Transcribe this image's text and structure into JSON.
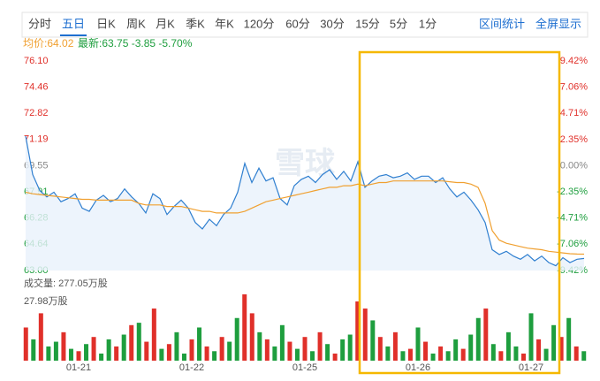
{
  "tabs": {
    "items": [
      "分时",
      "五日",
      "日K",
      "周K",
      "月K",
      "季K",
      "年K",
      "120分",
      "60分",
      "30分",
      "15分",
      "5分",
      "1分"
    ],
    "selected": 1,
    "actions": [
      "区间统计",
      "全屏显示"
    ]
  },
  "legend": {
    "avg": "均价:64.02",
    "latest": "最新:63.75 -3.85 -5.70%"
  },
  "watermark": "雪球",
  "chart_data": {
    "type": "line",
    "x_labels": [
      "01-21",
      "01-22",
      "01-25",
      "01-26",
      "01-27"
    ],
    "series": [
      {
        "color": "#2f7fd0",
        "values": [
          71.4,
          69.0,
          68.0,
          67.6,
          67.9,
          67.3,
          67.5,
          67.8,
          66.9,
          66.7,
          67.4,
          67.7,
          67.3,
          67.5,
          68.1,
          67.6,
          67.2,
          66.6,
          67.8,
          67.5,
          66.5,
          67.0,
          67.4,
          66.9,
          66.0,
          65.6,
          66.2,
          65.8,
          66.5,
          66.9,
          67.9,
          69.7,
          68.5,
          69.4,
          68.6,
          68.8,
          67.5,
          67.1,
          68.3,
          68.7,
          68.9,
          68.5,
          69.0,
          69.3,
          68.7,
          69.2,
          68.6,
          69.8,
          68.2,
          68.6,
          68.9,
          69.0,
          68.8,
          68.9,
          69.1,
          68.7,
          68.9,
          68.9,
          68.5,
          68.8,
          68.1,
          67.6,
          67.9,
          67.4,
          66.8,
          66.0,
          64.3,
          64.0,
          64.2,
          63.9,
          63.7,
          64.0,
          63.6,
          63.9,
          63.5,
          63.3,
          63.8,
          63.5,
          63.7,
          63.75
        ]
      },
      {
        "color": "#f0a030",
        "values": [
          67.9,
          67.8,
          67.75,
          67.7,
          67.65,
          67.6,
          67.55,
          67.5,
          67.45,
          67.45,
          67.4,
          67.4,
          67.4,
          67.4,
          67.4,
          67.4,
          67.2,
          67.1,
          67.1,
          67.1,
          67.0,
          67.0,
          67.0,
          66.9,
          66.8,
          66.7,
          66.7,
          66.6,
          66.6,
          66.6,
          66.6,
          66.7,
          66.9,
          67.1,
          67.3,
          67.4,
          67.5,
          67.6,
          67.7,
          67.8,
          67.9,
          68.0,
          68.1,
          68.2,
          68.2,
          68.3,
          68.3,
          68.4,
          68.3,
          68.4,
          68.5,
          68.5,
          68.6,
          68.6,
          68.6,
          68.6,
          68.6,
          68.6,
          68.6,
          68.6,
          68.55,
          68.5,
          68.5,
          68.4,
          68.2,
          67.2,
          65.5,
          64.9,
          64.7,
          64.6,
          64.5,
          64.4,
          64.35,
          64.3,
          64.2,
          64.15,
          64.1,
          64.05,
          64.03,
          64.02
        ]
      }
    ],
    "ylim": [
      63.0,
      76.1
    ],
    "yticks": [
      {
        "value": 76.1,
        "label": "76.10"
      },
      {
        "value": 74.46,
        "label": "74.46"
      },
      {
        "value": 72.82,
        "label": "72.82"
      },
      {
        "value": 71.19,
        "label": "71.19"
      },
      {
        "value": 69.55,
        "label": "69.55"
      },
      {
        "value": 67.91,
        "label": "67.91"
      },
      {
        "value": 66.28,
        "label": "66.28"
      },
      {
        "value": 64.64,
        "label": "64.64"
      },
      {
        "value": 63.0,
        "label": "63.00"
      }
    ],
    "y2lim": [
      -9.42,
      9.42
    ],
    "y2ticks": [
      {
        "value": 9.42,
        "label": "9.42%"
      },
      {
        "value": 7.06,
        "label": "7.06%"
      },
      {
        "value": 4.71,
        "label": "4.71%"
      },
      {
        "value": 2.35,
        "label": "2.35%"
      },
      {
        "value": 0,
        "label": "0.00%"
      },
      {
        "value": -2.35,
        "label": "-2.35%"
      },
      {
        "value": -4.71,
        "label": "-4.71%"
      },
      {
        "value": -7.06,
        "label": "-7.06%"
      },
      {
        "value": -9.42,
        "label": "-9.42%"
      }
    ],
    "up_color": "#e0302a",
    "down_color": "#1e9e3e",
    "flat_color": "#888888",
    "volume": {
      "label": "成交量: 277.05万股",
      "ylim": [
        0,
        27.98
      ],
      "yticks": [
        {
          "value": 27.98,
          "label": "27.98万股"
        }
      ],
      "values": [
        14,
        9,
        20,
        6,
        8,
        12,
        5,
        4,
        7,
        10,
        3,
        9,
        6,
        11,
        15,
        16,
        8,
        22,
        5,
        7,
        12,
        3,
        9,
        14,
        6,
        4,
        10,
        8,
        18,
        28,
        20,
        12,
        9,
        6,
        15,
        8,
        5,
        10,
        4,
        12,
        7,
        3,
        9,
        11,
        25,
        22,
        17,
        10,
        6,
        12,
        4,
        5,
        14,
        8,
        3,
        6,
        4,
        9,
        5,
        11,
        18,
        22,
        7,
        4,
        12,
        6,
        3,
        20,
        9,
        5,
        15,
        10,
        18,
        6,
        4
      ],
      "bar_colors": [
        "#e0302a",
        "#1e9e3e",
        "#e0302a",
        "#1e9e3e",
        "#1e9e3e",
        "#e0302a",
        "#1e9e3e",
        "#e0302a",
        "#1e9e3e",
        "#e0302a",
        "#1e9e3e",
        "#1e9e3e",
        "#e0302a",
        "#1e9e3e",
        "#e0302a",
        "#1e9e3e",
        "#e0302a",
        "#e0302a",
        "#1e9e3e",
        "#e0302a",
        "#1e9e3e",
        "#1e9e3e",
        "#e0302a",
        "#1e9e3e",
        "#e0302a",
        "#1e9e3e",
        "#e0302a",
        "#1e9e3e",
        "#1e9e3e",
        "#e0302a",
        "#e0302a",
        "#1e9e3e",
        "#e0302a",
        "#1e9e3e",
        "#1e9e3e",
        "#e0302a",
        "#1e9e3e",
        "#e0302a",
        "#1e9e3e",
        "#e0302a",
        "#1e9e3e",
        "#e0302a",
        "#1e9e3e",
        "#1e9e3e",
        "#e0302a",
        "#e0302a",
        "#1e9e3e",
        "#e0302a",
        "#1e9e3e",
        "#e0302a",
        "#1e9e3e",
        "#e0302a",
        "#1e9e3e",
        "#e0302a",
        "#1e9e3e",
        "#e0302a",
        "#1e9e3e",
        "#1e9e3e",
        "#e0302a",
        "#1e9e3e",
        "#1e9e3e",
        "#e0302a",
        "#1e9e3e",
        "#e0302a",
        "#1e9e3e",
        "#1e9e3e",
        "#e0302a",
        "#1e9e3e",
        "#e0302a",
        "#1e9e3e",
        "#1e9e3e",
        "#e0302a",
        "#1e9e3e",
        "#e0302a",
        "#1e9e3e"
      ]
    }
  }
}
